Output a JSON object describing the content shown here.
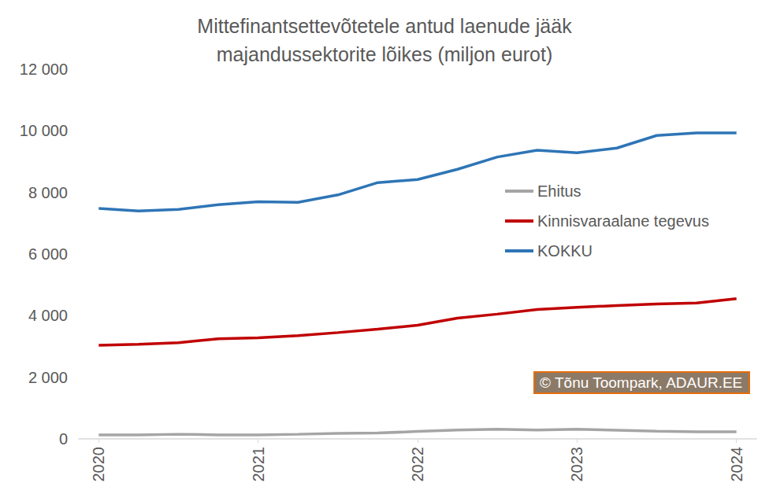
{
  "chart_data": {
    "type": "line",
    "title": "Mittefinantsettevõtetele antud laenude jääk\nmajandussektorite lõikes (miljon eurot)",
    "categories": [
      "2020",
      null,
      null,
      null,
      "2021",
      null,
      null,
      null,
      "2022",
      null,
      null,
      null,
      "2023",
      null,
      null,
      null,
      "2024"
    ],
    "series": [
      {
        "name": "Ehitus",
        "color": "#a5a5a5",
        "values": [
          130,
          130,
          150,
          130,
          130,
          150,
          180,
          190,
          240,
          290,
          310,
          290,
          310,
          280,
          250,
          230,
          230
        ]
      },
      {
        "name": "Kinnisvaraalane tegevus",
        "color": "#c00000",
        "values": [
          3040,
          3070,
          3120,
          3250,
          3280,
          3350,
          3450,
          3560,
          3690,
          3920,
          4050,
          4200,
          4270,
          4330,
          4380,
          4410,
          4550
        ]
      },
      {
        "name": "KOKKU",
        "color": "#2e75b6",
        "values": [
          7480,
          7400,
          7450,
          7600,
          7700,
          7680,
          7920,
          8320,
          8420,
          8750,
          9150,
          9370,
          9290,
          9440,
          9850,
          9930,
          9930
        ]
      }
    ],
    "ylim": [
      0,
      12000
    ],
    "yticks": [
      0,
      {
        "value": 2000,
        "label": "2 000"
      },
      {
        "value": 4000,
        "label": "4 000"
      },
      {
        "value": 6000,
        "label": "6 000"
      },
      {
        "value": 8000,
        "label": "8 000"
      },
      {
        "value": 10000,
        "label": "10 000"
      },
      {
        "value": 12000,
        "label": "12 000"
      }
    ],
    "grid": false,
    "legend": "right",
    "annotation": "© Tõnu Toompark, ADAUR.EE"
  }
}
